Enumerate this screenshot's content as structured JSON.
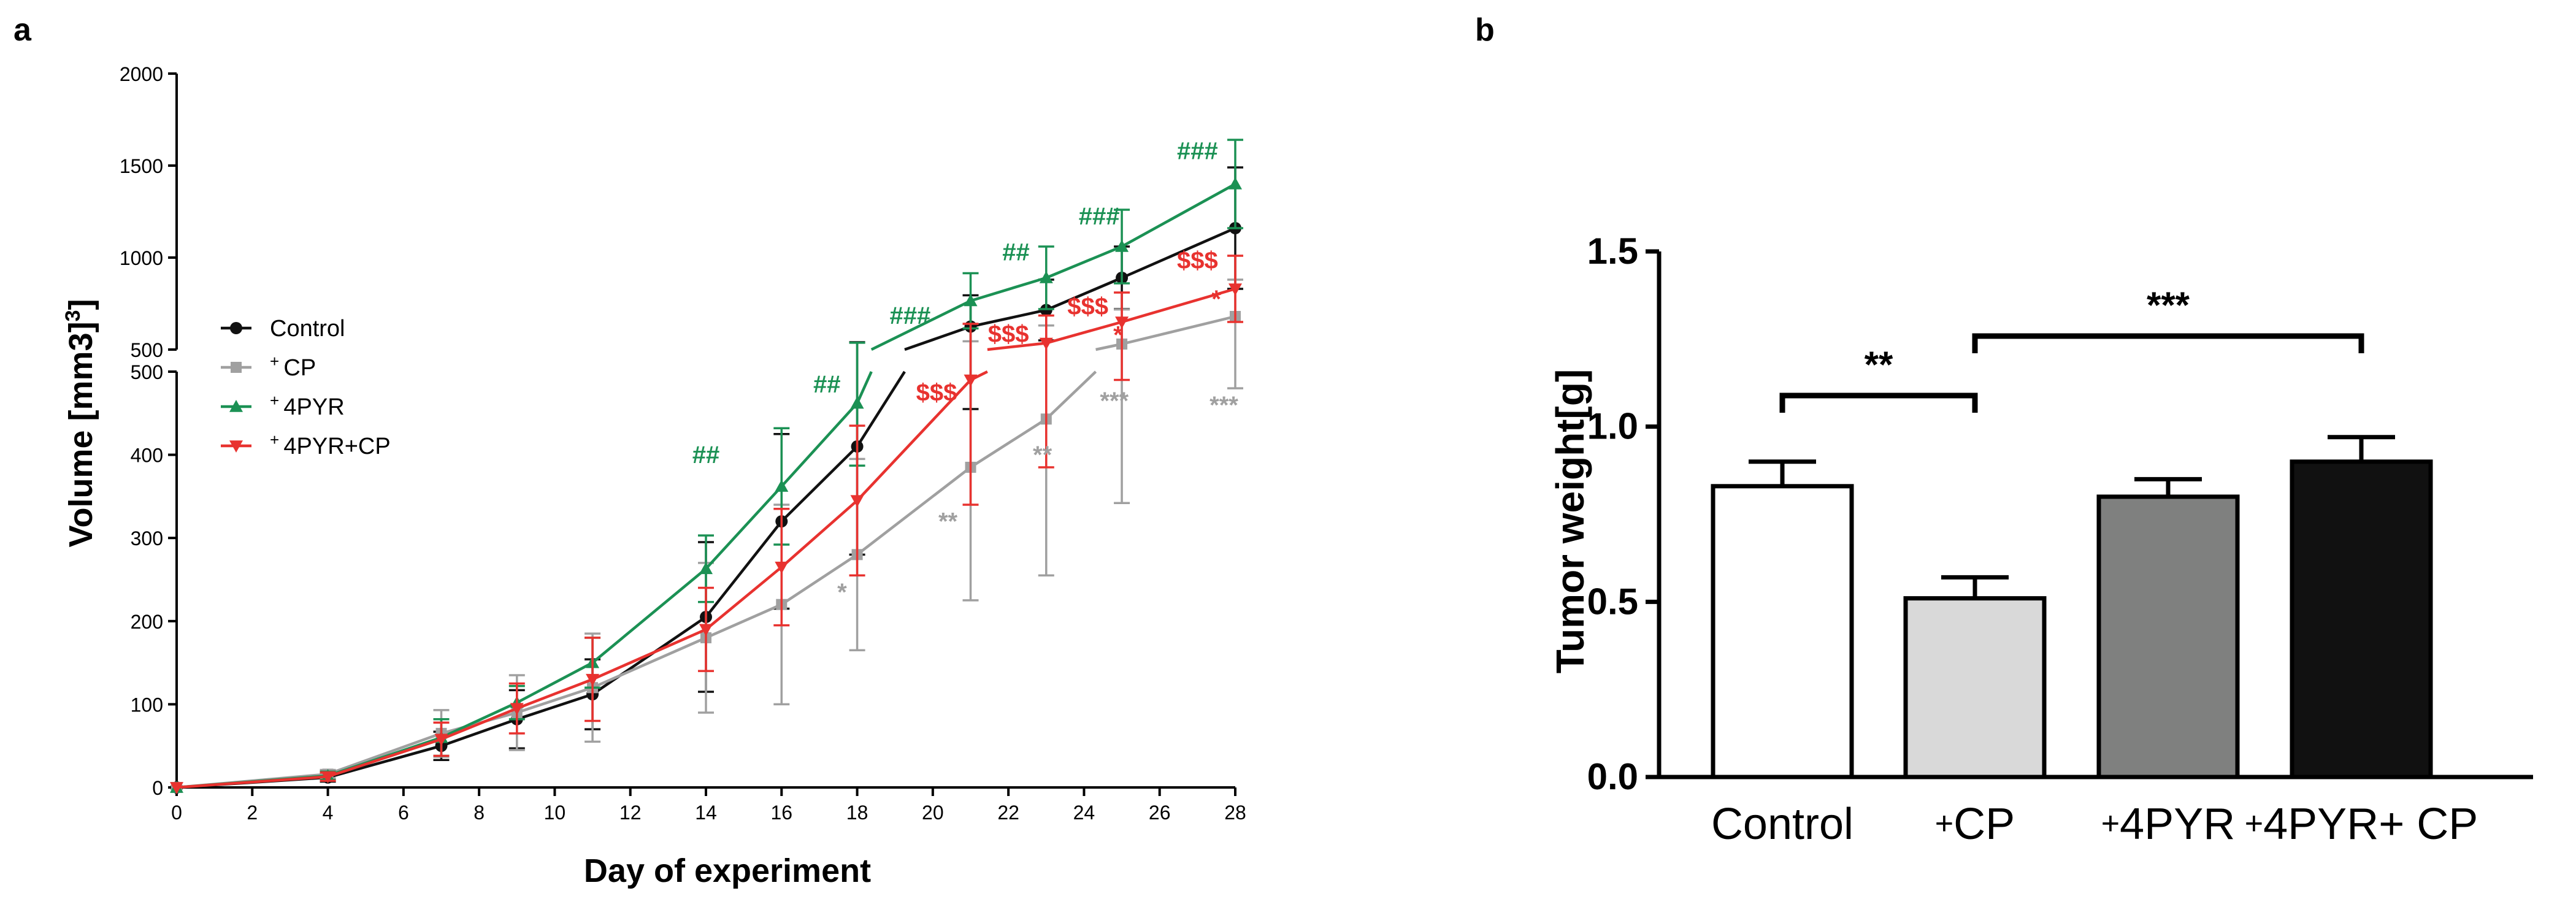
{
  "figure": {
    "panel_a_label": "a",
    "panel_b_label": "b"
  },
  "chart_data": [
    {
      "type": "line",
      "panel": "a",
      "xlabel": "Day of experiment",
      "ylabel": "Volume [mm3]",
      "y_axis": "broken",
      "ylim_lower": [
        0,
        500
      ],
      "ylim_upper": [
        500,
        2000
      ],
      "xlim": [
        0,
        28
      ],
      "x_ticks": [
        0,
        2,
        4,
        6,
        8,
        10,
        12,
        14,
        16,
        18,
        20,
        22,
        24,
        26,
        28
      ],
      "y_ticks_lower": [
        0,
        100,
        200,
        300,
        400,
        500
      ],
      "y_ticks_upper": [
        500,
        1000,
        1500,
        2000
      ],
      "legend_position": "left",
      "x": [
        0,
        4,
        7,
        9,
        11,
        14,
        16,
        18,
        21,
        23,
        25,
        28
      ],
      "series": [
        {
          "name": "Control",
          "legend_prefix": "",
          "legend_label": "Control",
          "color": "#111111",
          "marker": "circle",
          "values": [
            0,
            12,
            50,
            82,
            112,
            205,
            320,
            410,
            625,
            715,
            890,
            1160
          ],
          "errors": [
            0,
            5,
            17,
            35,
            42,
            90,
            105,
            130,
            170,
            165,
            170,
            330
          ]
        },
        {
          "name": "+CP",
          "legend_prefix": "+",
          "legend_label": "CP",
          "color": "#a0a0a0",
          "marker": "square",
          "values": [
            0,
            16,
            65,
            90,
            120,
            180,
            220,
            280,
            385,
            443,
            530,
            680
          ],
          "errors": [
            0,
            5,
            28,
            45,
            65,
            90,
            120,
            115,
            160,
            188,
            188,
            200
          ]
        },
        {
          "name": "+4PYR",
          "legend_prefix": "+",
          "legend_label": "4PYR",
          "color": "#1b9154",
          "marker": "triangle-up",
          "values": [
            0,
            14,
            60,
            102,
            150,
            263,
            362,
            462,
            765,
            890,
            1060,
            1400
          ],
          "errors": [
            0,
            5,
            22,
            20,
            30,
            40,
            70,
            75,
            150,
            170,
            200,
            240
          ]
        },
        {
          "name": "+4PYR+CP",
          "legend_prefix": "+",
          "legend_label": "4PYR+CP",
          "color": "#e8322f",
          "marker": "triangle-down",
          "values": [
            0,
            13,
            58,
            95,
            130,
            190,
            265,
            345,
            490,
            535,
            650,
            830
          ],
          "errors": [
            0,
            5,
            20,
            30,
            50,
            50,
            70,
            90,
            150,
            150,
            160,
            180
          ]
        }
      ],
      "annotations": [
        {
          "text": "##",
          "x": 14,
          "y": 390,
          "color": "#1b9154"
        },
        {
          "text": "##",
          "x": 17.2,
          "y": 475,
          "color": "#1b9154"
        },
        {
          "text": "###",
          "x": 19.4,
          "y": 640,
          "color": "#1b9154"
        },
        {
          "text": "##",
          "x": 22.2,
          "y": 985,
          "color": "#1b9154"
        },
        {
          "text": "###",
          "x": 24.4,
          "y": 1180,
          "color": "#1b9154"
        },
        {
          "text": "###",
          "x": 27,
          "y": 1535,
          "color": "#1b9154"
        },
        {
          "text": "$$$",
          "x": 20.1,
          "y": 465,
          "color": "#e8322f"
        },
        {
          "text": "$$$",
          "x": 22.0,
          "y": 540,
          "color": "#e8322f"
        },
        {
          "text": "$$$",
          "x": 24.1,
          "y": 690,
          "color": "#e8322f"
        },
        {
          "text": "$$$",
          "x": 27.0,
          "y": 940,
          "color": "#e8322f"
        },
        {
          "text": "*",
          "x": 24.9,
          "y": 535,
          "color": "#e8322f"
        },
        {
          "text": "*",
          "x": 27.5,
          "y": 730,
          "color": "#e8322f"
        },
        {
          "text": "*",
          "x": 17.6,
          "y": 225,
          "color": "#a0a0a0"
        },
        {
          "text": "**",
          "x": 20.4,
          "y": 310,
          "color": "#a0a0a0"
        },
        {
          "text": "**",
          "x": 22.9,
          "y": 390,
          "color": "#a0a0a0"
        },
        {
          "text": "***",
          "x": 24.8,
          "y": 455,
          "color": "#a0a0a0"
        },
        {
          "text": "***",
          "x": 27.7,
          "y": 450,
          "color": "#a0a0a0"
        }
      ]
    },
    {
      "type": "bar",
      "panel": "b",
      "ylabel": "Tumor weight[g]",
      "ylim": [
        0,
        1.5
      ],
      "y_ticks": [
        "0.0",
        "0.5",
        "1.0",
        "1.5"
      ],
      "categories": [
        "Control",
        "+CP",
        "+4PYR",
        "+4PYR+ CP"
      ],
      "category_prefix": [
        "",
        "+",
        "+",
        "+"
      ],
      "category_text": [
        "Control",
        "CP",
        "4PYR",
        "4PYR+ CP"
      ],
      "values": [
        0.83,
        0.51,
        0.8,
        0.9
      ],
      "errors": [
        0.07,
        0.06,
        0.05,
        0.07
      ],
      "colors": [
        "#ffffff",
        "#d9d9d9",
        "#7f807f",
        "#111111"
      ],
      "significance": [
        {
          "from": 0,
          "to": 1,
          "label": "**"
        },
        {
          "from": 1,
          "to": 3,
          "label": "***"
        }
      ]
    }
  ]
}
